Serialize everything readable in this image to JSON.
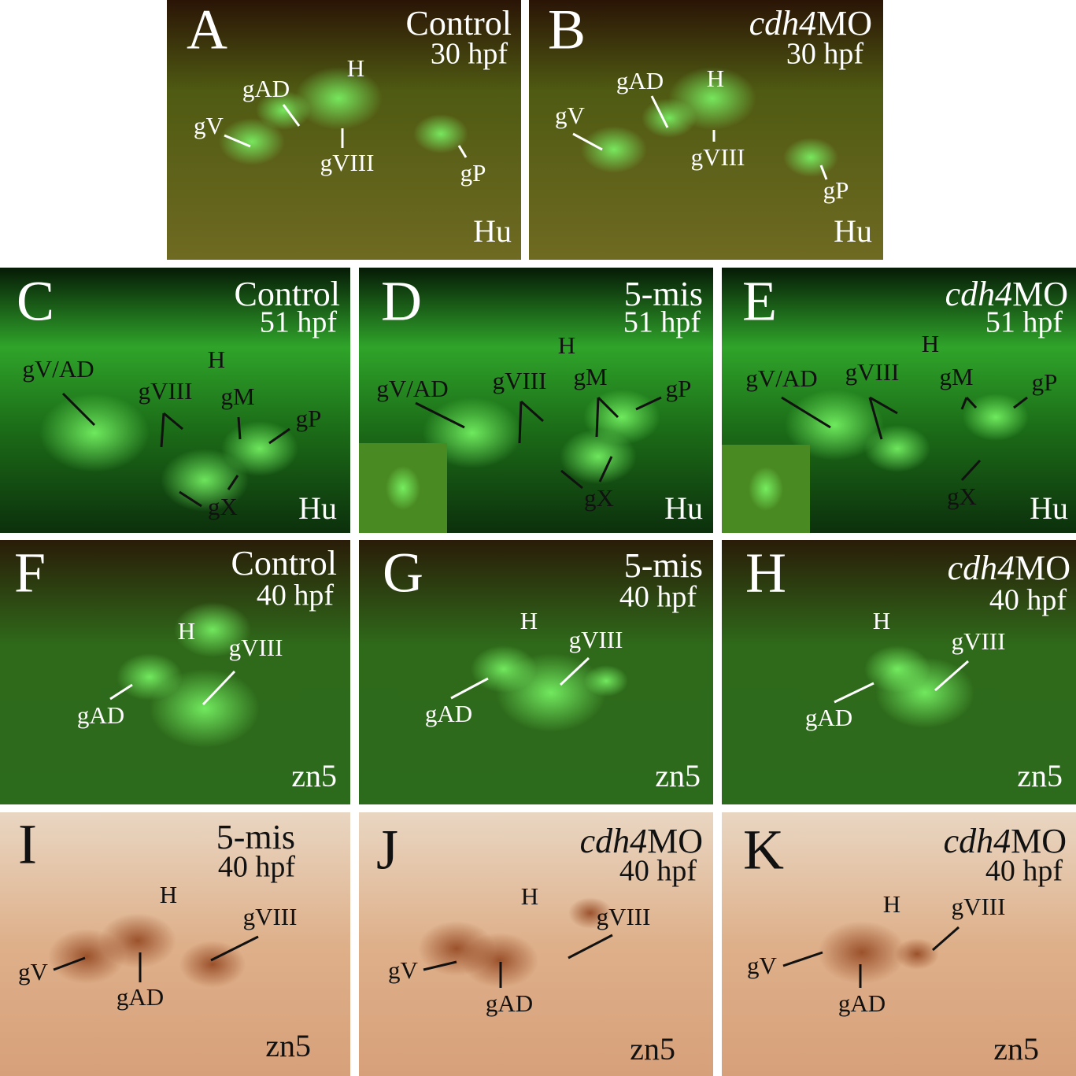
{
  "panels": [
    {
      "letter": "A",
      "condition": [
        {
          "text": "Control"
        }
      ],
      "stage": "30 hpf",
      "stain": "Hu",
      "labels": [
        "gV",
        "gAD",
        "H",
        "gVIII",
        "gP"
      ]
    },
    {
      "letter": "B",
      "condition": [
        {
          "text": "cdh4",
          "italic": true
        },
        {
          "text": "MO"
        }
      ],
      "stage": "30 hpf",
      "stain": "Hu",
      "labels": [
        "gV",
        "gAD",
        "H",
        "gVIII",
        "gP"
      ]
    },
    {
      "letter": "C",
      "condition": [
        {
          "text": "Control"
        }
      ],
      "stage": "51 hpf",
      "stain": "Hu",
      "labels": [
        "gV/AD",
        "H",
        "gVIII",
        "gM",
        "gP",
        "gX"
      ]
    },
    {
      "letter": "D",
      "condition": [
        {
          "text": "5-mis"
        }
      ],
      "stage": "51 hpf",
      "stain": "Hu",
      "labels": [
        "gV/AD",
        "H",
        "gVIII",
        "gM",
        "gP",
        "gX"
      ]
    },
    {
      "letter": "E",
      "condition": [
        {
          "text": "cdh4",
          "italic": true
        },
        {
          "text": "MO"
        }
      ],
      "stage": "51 hpf",
      "stain": "Hu",
      "labels": [
        "gV/AD",
        "H",
        "gVIII",
        "gM",
        "gP",
        "gX"
      ]
    },
    {
      "letter": "F",
      "condition": [
        {
          "text": "Control"
        }
      ],
      "stage": "40 hpf",
      "stain": "zn5",
      "labels": [
        "H",
        "gVIII",
        "gAD"
      ]
    },
    {
      "letter": "G",
      "condition": [
        {
          "text": "5-mis"
        }
      ],
      "stage": "40 hpf",
      "stain": "zn5",
      "labels": [
        "H",
        "gVIII",
        "gAD"
      ]
    },
    {
      "letter": "H",
      "condition": [
        {
          "text": "cdh4",
          "italic": true
        },
        {
          "text": "MO"
        }
      ],
      "stage": "40 hpf",
      "stain": "zn5",
      "labels": [
        "H",
        "gVIII",
        "gAD"
      ]
    },
    {
      "letter": "I",
      "condition": [
        {
          "text": "5-mis"
        }
      ],
      "stage": "40 hpf",
      "stain": "zn5",
      "labels": [
        "H",
        "gVIII",
        "gV",
        "gAD"
      ]
    },
    {
      "letter": "J",
      "condition": [
        {
          "text": "cdh4",
          "italic": true
        },
        {
          "text": "MO"
        }
      ],
      "stage": "40 hpf",
      "stain": "zn5",
      "labels": [
        "H",
        "gVIII",
        "gV",
        "gAD"
      ]
    },
    {
      "letter": "K",
      "condition": [
        {
          "text": "cdh4",
          "italic": true
        },
        {
          "text": "MO"
        }
      ],
      "stage": "40 hpf",
      "stain": "zn5",
      "labels": [
        "H",
        "gVIII",
        "gV",
        "gAD"
      ]
    }
  ]
}
